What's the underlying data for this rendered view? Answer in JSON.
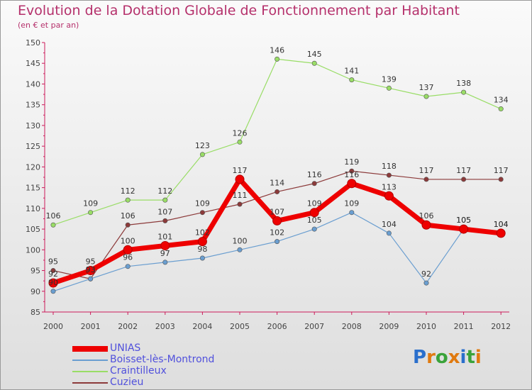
{
  "chart_data": {
    "type": "line",
    "title": "Evolution de la Dotation Globale de Fonctionnement par Habitant",
    "subtitle": "(en € et par an)",
    "x": [
      2000,
      2001,
      2002,
      2003,
      2004,
      2005,
      2006,
      2007,
      2008,
      2009,
      2010,
      2011,
      2012
    ],
    "ylim": [
      85,
      150
    ],
    "yticks": [
      85,
      90,
      95,
      100,
      105,
      110,
      115,
      120,
      125,
      130,
      135,
      140,
      145,
      150
    ],
    "grid": false,
    "series": [
      {
        "name": "UNIAS",
        "color": "#ee0000",
        "values": [
          92,
          95,
          100,
          101,
          102,
          117,
          107,
          109,
          116,
          113,
          106,
          105,
          104
        ]
      },
      {
        "name": "Boisset-lès-Montrond",
        "color": "#6a9ed0",
        "values": [
          90,
          93,
          96,
          97,
          98,
          100,
          102,
          105,
          109,
          104,
          92,
          105,
          104
        ]
      },
      {
        "name": "Craintilleux",
        "color": "#99dd66",
        "values": [
          106,
          109,
          112,
          112,
          123,
          126,
          146,
          145,
          141,
          139,
          137,
          138,
          134
        ]
      },
      {
        "name": "Cuzieu",
        "color": "#8c3a3a",
        "values": [
          95,
          93,
          106,
          107,
          109,
          111,
          114,
          116,
          119,
          118,
          117,
          117,
          117
        ]
      }
    ]
  },
  "logo": {
    "text": "Proxiti"
  }
}
